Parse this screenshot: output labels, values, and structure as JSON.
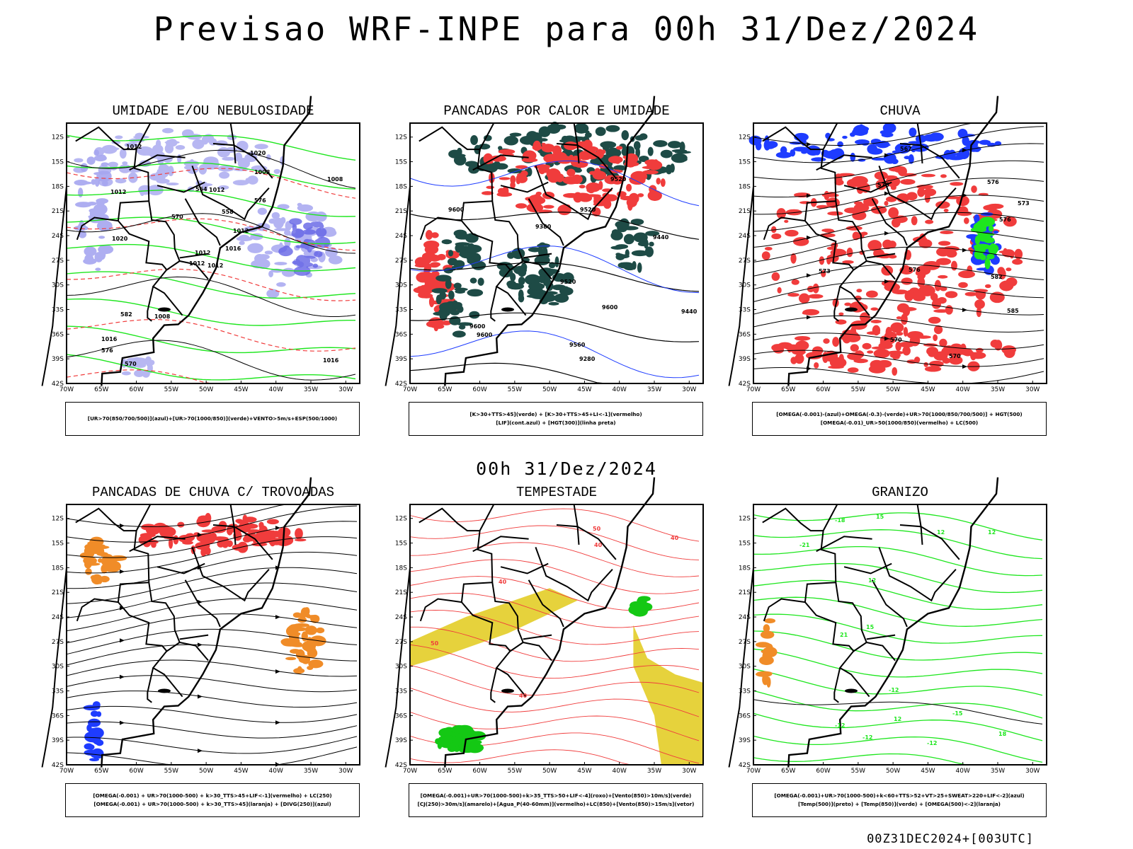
{
  "header": {
    "main_title": "Previsao WRF-INPE  para 00h 31/Dez/2024",
    "sub_title": "00h 31/Dez/2024",
    "footer": "00Z31DEC2024+[003UTC]"
  },
  "axes": {
    "lat_labels": [
      "12S",
      "15S",
      "18S",
      "21S",
      "24S",
      "27S",
      "30S",
      "33S",
      "36S",
      "39S",
      "42S"
    ],
    "lon_labels": [
      "70W",
      "65W",
      "60W",
      "55W",
      "50W",
      "45W",
      "40W",
      "35W",
      "30W"
    ]
  },
  "panels": [
    {
      "title": "UMIDADE E/OU NEBULOSIDADE",
      "legend": [
        "[UR>70(850/700/500)](azul)+[UR>70(1000/850)](verde)+VENTO>5m/s+ESP(500/1000)"
      ],
      "labels": [
        "1012",
        "1012",
        "1012",
        "1016",
        "1012",
        "1008",
        "1020",
        "1012",
        "1008",
        "1016",
        "1012",
        "1016",
        "1020",
        "1008",
        "1012",
        "576",
        "570",
        "564",
        "558",
        "582",
        "570",
        "576"
      ]
    },
    {
      "title": "PANCADAS POR CALOR E UMIDADE",
      "legend": [
        "[K>30+TTS>45](verde) + [K>30+TTS>45+LI<-1](vermelho)",
        "[LIF](cont.azul) + [HGT(300)](linha preta)"
      ],
      "labels": [
        "9600",
        "9600",
        "9600",
        "9520",
        "9520",
        "9600",
        "9520",
        "9440",
        "9440",
        "9380",
        "9280",
        "9560"
      ]
    },
    {
      "title": "CHUVA",
      "legend": [
        "[OMEGA(-0.001)-(azul)+OMEGA(-0.3)-(verde)+UR>70(1000/850/700/500)] + HGT(500)",
        "[OMEGA(-0.01)_UR>50(1000/850)(vermelho) + LC(500)"
      ],
      "labels": [
        "585",
        "582",
        "576",
        "576",
        "576",
        "570",
        "573",
        "573",
        "576",
        "570",
        "567"
      ]
    },
    {
      "title": "PANCADAS DE CHUVA C/ TROVOADAS",
      "legend": [
        "[OMEGA(-0.001) + UR>70(1000-500) + k>30_TTS>45+LIF<-1](vermelho) + LC(250)",
        "[OMEGA(-0.001) + UR>70(1000-500) + k>30_TTS>45](laranja) + [DIVG(250)](azul)"
      ],
      "labels": []
    },
    {
      "title": "TEMPESTADE",
      "legend": [
        "[OMEGA(-0.001)+UR>70(1000-500)+k>35_TTS>50+LIF<-4](roxo)+[Vento(850)>10m/s](verde)",
        "[CJ(250)>30m/s](amarelo)+[Agua_P(40-60mm)](vermelho)+LC(850)+[Vento(850)>15m/s](vetor)"
      ],
      "labels": [
        "40",
        "50",
        "40",
        "40",
        "50",
        "40"
      ]
    },
    {
      "title": "GRANIZO",
      "legend": [
        "[OMEGA(-0.001)+UR>70(1000-500)+k<60+TTS>52+VT>25+SWEAT>220+LIF<-2](azul)",
        "[Temp(500)](preto) + [Temp(850)](verde) + [OMEGA(500)<-2](laranja)"
      ],
      "labels": [
        "-12",
        "-12",
        "-12",
        "-15",
        "-18",
        "-21",
        "21",
        "18",
        "15",
        "12",
        "12",
        "12",
        "15",
        "-12",
        "12"
      ]
    }
  ],
  "colors": {
    "blue": "#1e3cff",
    "lavender": "#a6a6f0",
    "green": "#1ee61e",
    "red": "#f03c3c",
    "dark_teal": "#1e4b46",
    "orange": "#f08c28",
    "yellow": "#e6d23c"
  }
}
